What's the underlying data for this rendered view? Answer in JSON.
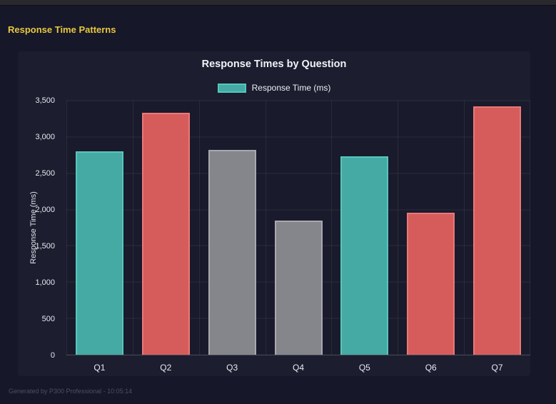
{
  "page": {
    "heading": "Response Time Patterns",
    "footer": "Generated by P300 Professional - 10:05:14"
  },
  "colors": {
    "heading_yellow": "#e9c83f",
    "background": "#161728",
    "panel_background": "#1c1d2f",
    "plot_background": "#191a2b",
    "teal": "#45aaa4",
    "red": "#d65c5c",
    "gray": "#85858c"
  },
  "chart_data": {
    "type": "bar",
    "title": "Response Times by Question",
    "legend": [
      {
        "label": "Response Time (ms)",
        "color": "#45aaa4",
        "border": "#56c6bb"
      }
    ],
    "legend_position": "top",
    "categories": [
      "Q1",
      "Q2",
      "Q3",
      "Q4",
      "Q5",
      "Q6",
      "Q7"
    ],
    "values": [
      2800,
      3330,
      2820,
      1850,
      2730,
      1960,
      3420
    ],
    "bar_colors": [
      "#45aaa4",
      "#d65c5c",
      "#85858c",
      "#85858c",
      "#45aaa4",
      "#d65c5c",
      "#d65c5c"
    ],
    "bar_border_colors": [
      "#56c6bb",
      "#e87878",
      "#a8a8af",
      "#a8a8af",
      "#56c6bb",
      "#e87878",
      "#e87878"
    ],
    "xlabel": "",
    "ylabel": "Response Time (ms)",
    "ylim": [
      0,
      3500
    ],
    "ytick_step": 500,
    "grid": true
  }
}
